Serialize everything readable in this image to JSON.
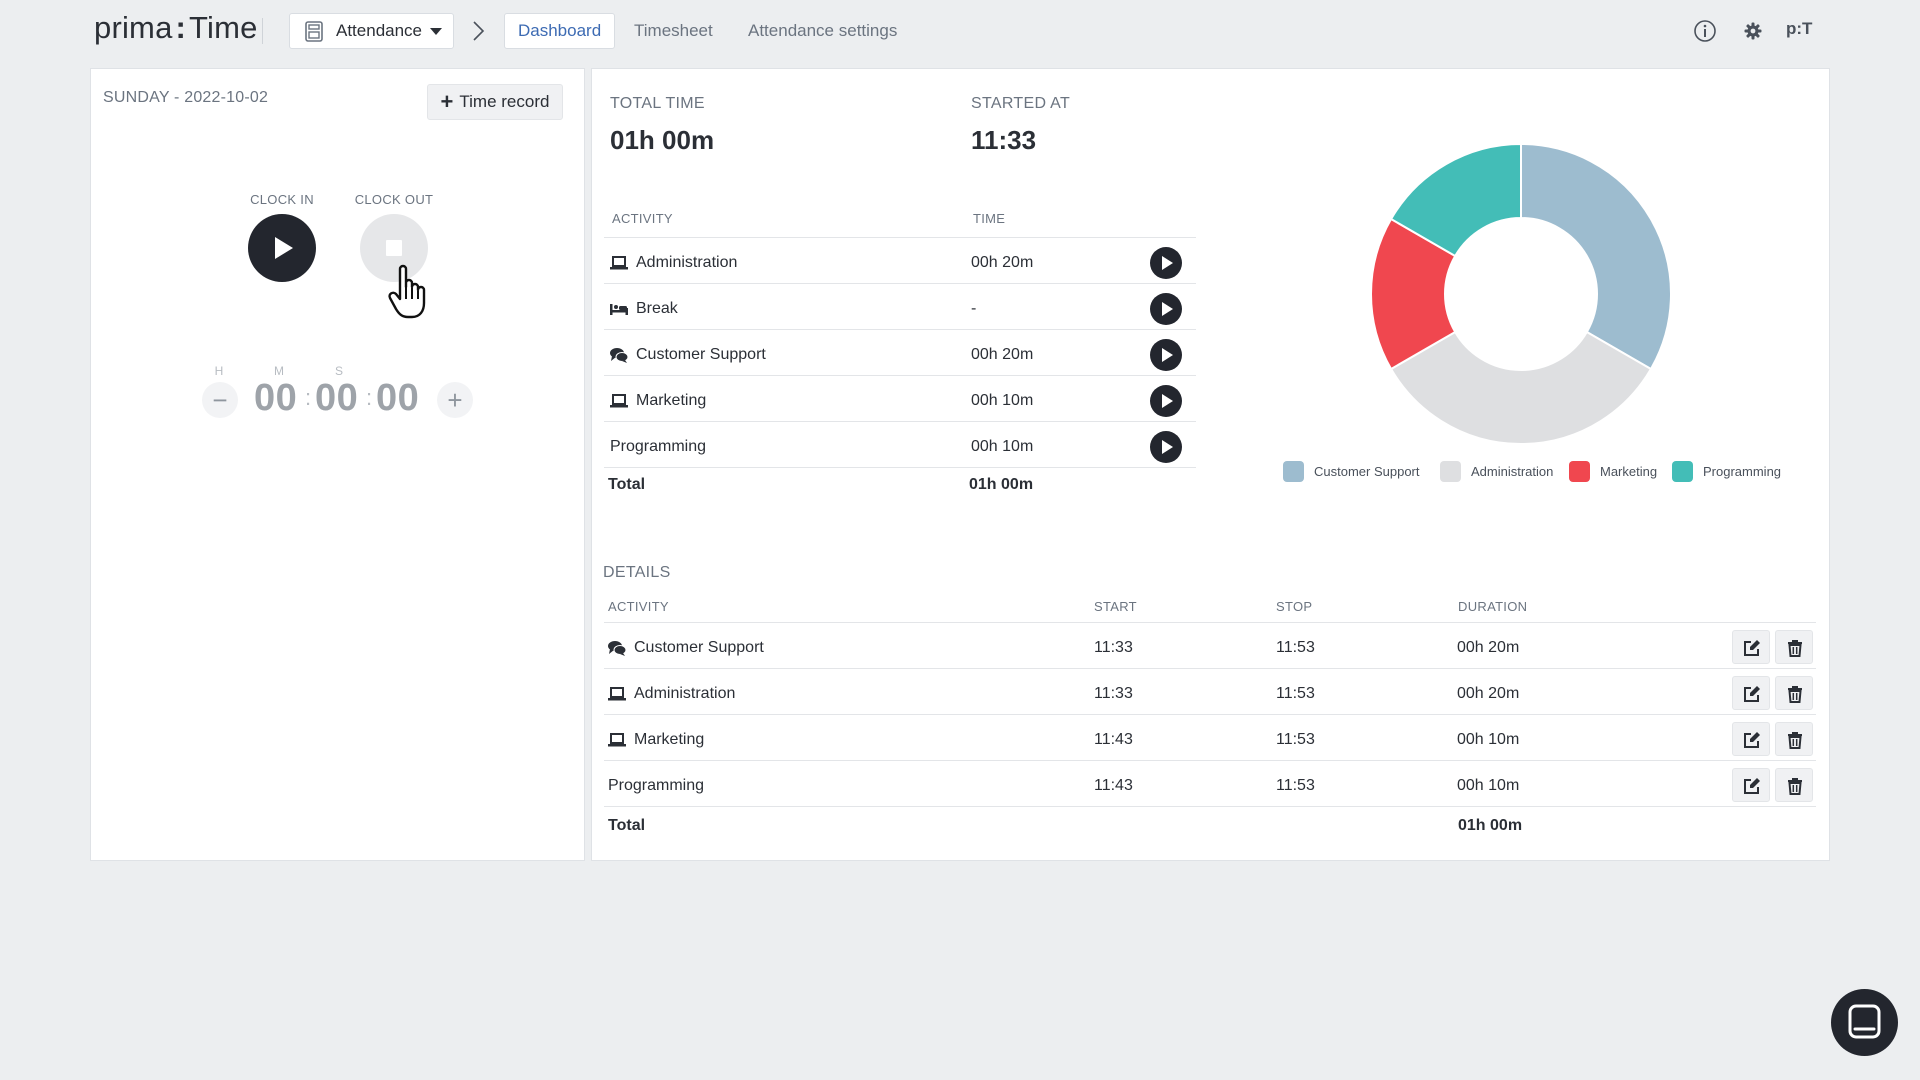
{
  "app": {
    "logo_left": "prima",
    "logo_colon": ":",
    "logo_right": "Time"
  },
  "nav": {
    "module": "Attendance",
    "tabs": [
      {
        "label": "Dashboard",
        "active": true
      },
      {
        "label": "Timesheet",
        "active": false
      },
      {
        "label": "Attendance settings",
        "active": false
      }
    ],
    "user_initials": "p:T"
  },
  "clock_panel": {
    "date": "SUNDAY - 2022-10-02",
    "time_record_label": "Time record",
    "clock_in_label": "CLOCK IN",
    "clock_out_label": "CLOCK OUT",
    "h_label": "H",
    "m_label": "M",
    "s_label": "S",
    "hours": "00",
    "minutes": "00",
    "seconds": "00",
    "decrement": "−",
    "increment": "+"
  },
  "summary": {
    "total_time_label": "TOTAL TIME",
    "total_time": "01h 00m",
    "started_at_label": "STARTED AT",
    "started_at": "11:33"
  },
  "activities": {
    "col_activity": "ACTIVITY",
    "col_time": "TIME",
    "rows": [
      {
        "name": "Administration",
        "time": "00h 20m",
        "icon": "laptop-icon"
      },
      {
        "name": "Break",
        "time": "-",
        "icon": "bed-icon"
      },
      {
        "name": "Customer Support",
        "time": "00h 20m",
        "icon": "comments-icon"
      },
      {
        "name": "Marketing",
        "time": "00h 10m",
        "icon": "laptop-icon"
      },
      {
        "name": "Programming",
        "time": "00h 10m",
        "icon": ""
      }
    ],
    "total_label": "Total",
    "total_value": "01h 00m"
  },
  "details": {
    "title": "DETAILS",
    "col_activity": "ACTIVITY",
    "col_start": "START",
    "col_stop": "STOP",
    "col_duration": "DURATION",
    "rows": [
      {
        "name": "Customer Support",
        "start": "11:33",
        "stop": "11:53",
        "duration": "00h 20m",
        "icon": "comments-icon"
      },
      {
        "name": "Administration",
        "start": "11:33",
        "stop": "11:53",
        "duration": "00h 20m",
        "icon": "laptop-icon"
      },
      {
        "name": "Marketing",
        "start": "11:43",
        "stop": "11:53",
        "duration": "00h 10m",
        "icon": "laptop-icon"
      },
      {
        "name": "Programming",
        "start": "11:43",
        "stop": "11:53",
        "duration": "00h 10m",
        "icon": ""
      }
    ],
    "total_label": "Total",
    "total_value": "01h 00m"
  },
  "chart_data": {
    "type": "pie",
    "categories": [
      "Customer Support",
      "Administration",
      "Marketing",
      "Programming"
    ],
    "values": [
      20,
      20,
      10,
      10
    ],
    "colors": [
      "#9dbccf",
      "#dedfe1",
      "#f0474f",
      "#43bdb7"
    ],
    "donut": true,
    "legend": "bottom"
  }
}
